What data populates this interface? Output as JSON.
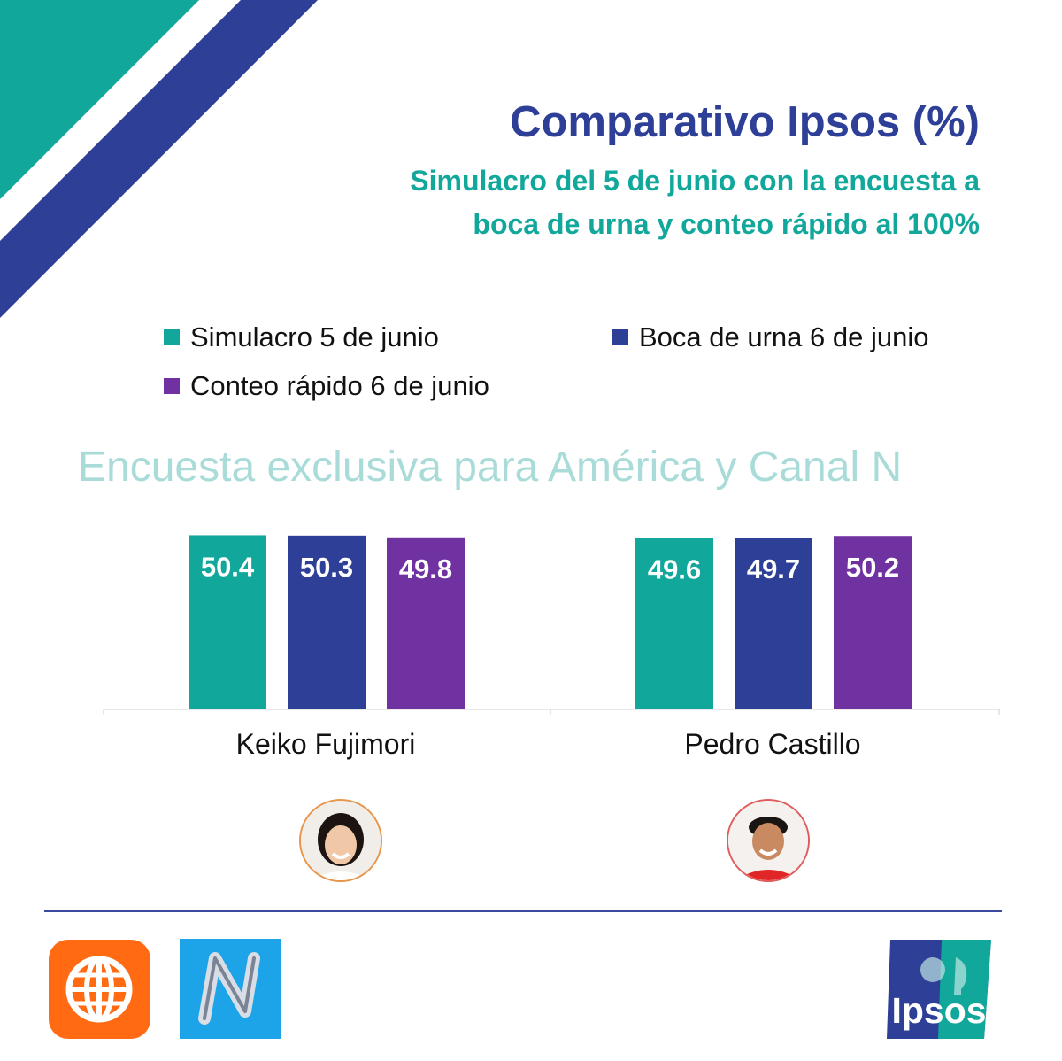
{
  "title": "Comparativo Ipsos (%)",
  "subtitle_line1": "Simulacro del 5 de junio con la encuesta a",
  "subtitle_line2": "boca de urna y conteo rápido al 100%",
  "watermark": "Encuesta exclusiva para América y Canal N",
  "colors": {
    "teal": "#12a79b",
    "navy": "#2e3f97",
    "purple": "#7032a0",
    "title": "#2e3f97"
  },
  "chart_data": {
    "type": "bar",
    "categories": [
      "Keiko Fujimori",
      "Pedro Castillo"
    ],
    "series": [
      {
        "name": "Simulacro 5 de junio",
        "color": "#12a79b",
        "values": [
          50.4,
          49.6
        ]
      },
      {
        "name": "Boca de urna 6 de junio",
        "color": "#2e3f97",
        "values": [
          50.3,
          49.7
        ]
      },
      {
        "name": "Conteo rápido 6 de junio",
        "color": "#7032a0",
        "values": [
          49.8,
          50.2
        ]
      }
    ],
    "data_labels": true,
    "legend_position": "top",
    "grid": false
  },
  "logos": {
    "america": "america-tv-logo",
    "canal_n": "canal-n-logo",
    "ipsos": "Ipsos"
  }
}
